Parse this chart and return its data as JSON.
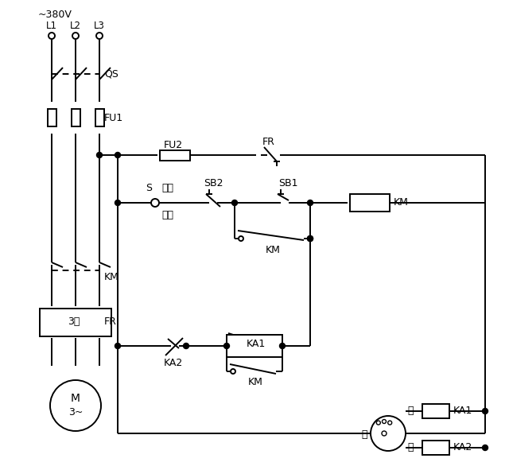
{
  "bg_color": "#ffffff",
  "lc": "#000000",
  "lw": 1.4,
  "figsize": [
    6.4,
    5.86
  ],
  "dpi": 100,
  "labels": {
    "voltage": "~380V",
    "L1": "L1",
    "L2": "L2",
    "L3": "L3",
    "QS": "QS",
    "FU1": "FU1",
    "FU2": "FU2",
    "FR": "FR",
    "S": "S",
    "manual": "手动",
    "auto": "自动",
    "SB2": "SB2",
    "SB1": "SB1",
    "KM_coil": "KM",
    "KM1": "KM",
    "KM2": "KM",
    "KM3": "KM",
    "KA1_box": "KA1",
    "KA2": "KA2",
    "FR_box": "FR",
    "KA1_relay": "KA1",
    "KA2_relay": "KA2",
    "low": "低",
    "mid": "中",
    "high": "高",
    "M": "M",
    "M_sub": "3~",
    "M_box": "3「"
  }
}
